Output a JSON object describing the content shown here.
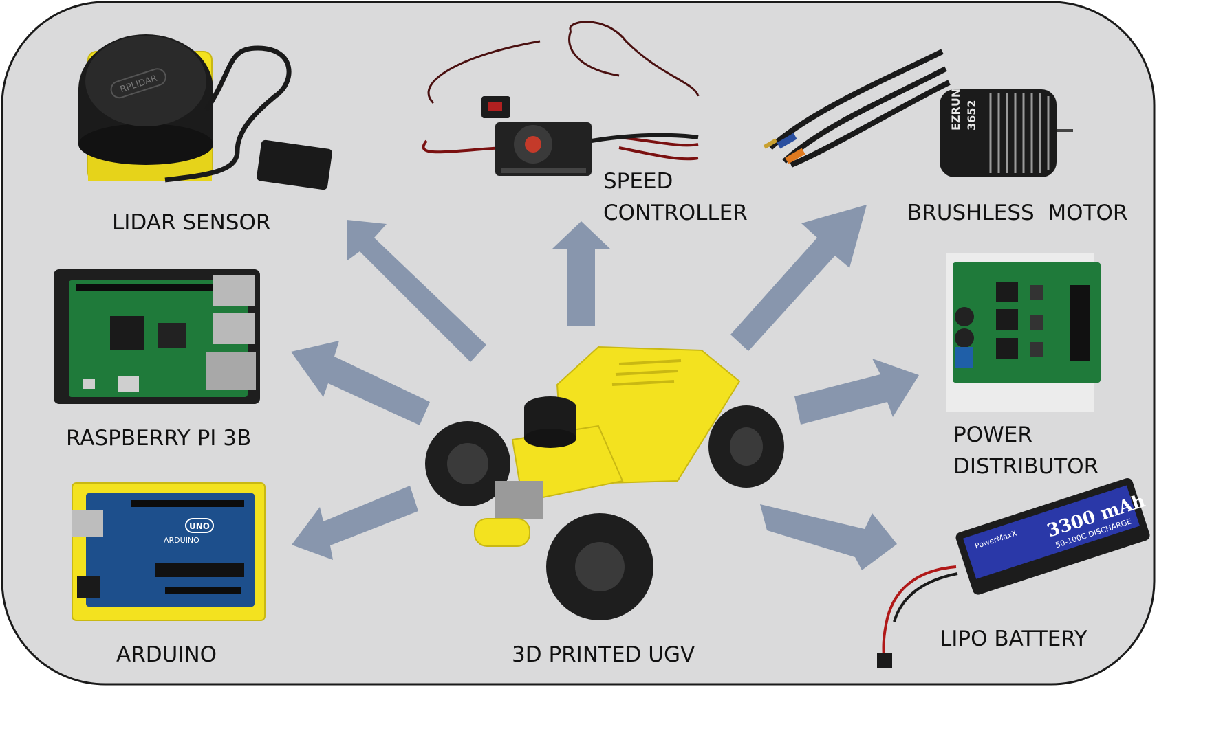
{
  "diagram": {
    "center": {
      "label": "3D PRINTED UGV"
    },
    "components": [
      {
        "id": "lidar",
        "label_lines": [
          "LIDAR SENSOR"
        ]
      },
      {
        "id": "esc",
        "label_lines": [
          "SPEED",
          "CONTROLLER"
        ]
      },
      {
        "id": "motor",
        "label_lines": [
          "BRUSHLESS  MOTOR"
        ]
      },
      {
        "id": "rpi",
        "label_lines": [
          "RASPBERRY PI 3B"
        ]
      },
      {
        "id": "power",
        "label_lines": [
          "POWER",
          "DISTRIBUTOR"
        ]
      },
      {
        "id": "arduino",
        "label_lines": [
          "ARDUINO"
        ]
      },
      {
        "id": "battery",
        "label_lines": [
          "LIPO BATTERY"
        ]
      }
    ],
    "device_markings": {
      "lidar": "RPLIDAR",
      "motor_brand": "EZRUN",
      "motor_model": "3652",
      "arduino_brand": "ARDUINO",
      "arduino_model": "UNO",
      "battery_brand": "PowerMaxX",
      "battery_capacity": "3300 mAh",
      "battery_rating": "50-100C DISCHARGE"
    },
    "colors": {
      "panel_background": "#dadadb",
      "panel_border": "#1a1a1a",
      "arrow": "#8896ad",
      "enclosure_yellow": "#f3e21f",
      "pcb_green": "#1f7a3a",
      "arduino_blue": "#1d4f8c"
    }
  }
}
